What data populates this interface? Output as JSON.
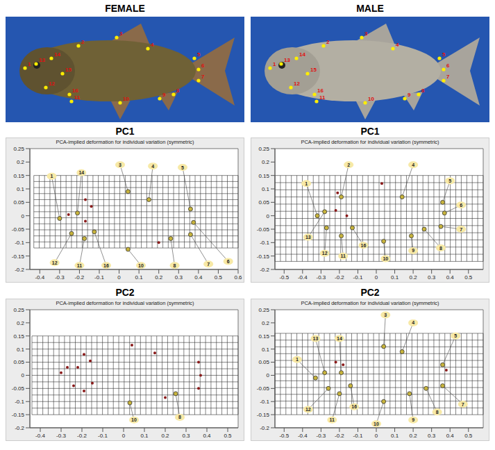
{
  "headings": [
    "FEMALE",
    "MALE"
  ],
  "photo_landmarks": [
    [
      "1",
      "2",
      "3",
      "4",
      "5",
      "6",
      "7",
      "8",
      "9",
      "10",
      "11",
      "12",
      "13",
      "14",
      "15",
      "16"
    ],
    [
      "1",
      "2",
      "3",
      "4",
      "5",
      "6",
      "7",
      "8",
      "9",
      "10",
      "11",
      "12",
      "13",
      "14",
      "15",
      "16"
    ]
  ],
  "chart_data": [
    {
      "type": "scatter",
      "title": "PC1",
      "subtitle": "PCA-implied deformation for individual variation (symmetric)",
      "xlim": [
        -0.45,
        0.6
      ],
      "ylim": [
        -0.2,
        0.25
      ],
      "xticks": [
        -0.4,
        -0.3,
        -0.2,
        -0.1,
        0,
        0.1,
        0.2,
        0.3,
        0.4,
        0.5,
        0.6
      ],
      "yticks": [
        -0.2,
        -0.15,
        -0.1,
        -0.05,
        0,
        0.05,
        0.1,
        0.15,
        0.2,
        0.25
      ],
      "grid": true,
      "deformation_grid": {
        "x": [
          -0.43,
          0.6
        ],
        "y": [
          -0.12,
          0.15
        ]
      },
      "color": "#c8b43c",
      "landmarks": [
        {
          "label": "1",
          "x": -0.3,
          "y": -0.01,
          "label_x": -0.34,
          "label_y": 0.147
        },
        {
          "label": "14",
          "x": -0.21,
          "y": 0.01,
          "label_x": -0.19,
          "label_y": 0.16
        },
        {
          "label": "3",
          "x": 0.045,
          "y": 0.09,
          "label_x": 0.005,
          "label_y": 0.19
        },
        {
          "label": "4",
          "x": 0.15,
          "y": 0.06,
          "label_x": 0.17,
          "label_y": 0.185
        },
        {
          "label": "5",
          "x": 0.36,
          "y": 0.025,
          "label_x": 0.32,
          "label_y": 0.18
        },
        {
          "label": "12",
          "x": -0.24,
          "y": -0.066,
          "label_x": -0.325,
          "label_y": -0.175
        },
        {
          "label": "11",
          "x": -0.175,
          "y": -0.085,
          "label_x": -0.2,
          "label_y": -0.185
        },
        {
          "label": "16",
          "x": -0.125,
          "y": -0.06,
          "label_x": -0.065,
          "label_y": -0.185
        },
        {
          "label": "10",
          "x": 0.045,
          "y": -0.125,
          "label_x": 0.11,
          "label_y": -0.185
        },
        {
          "label": "8",
          "x": 0.26,
          "y": -0.085,
          "label_x": 0.28,
          "label_y": -0.185
        },
        {
          "label": "7",
          "x": 0.36,
          "y": -0.07,
          "label_x": 0.45,
          "label_y": -0.18
        },
        {
          "label": "6",
          "x": 0.375,
          "y": -0.025,
          "label_x": 0.55,
          "label_y": -0.17
        }
      ],
      "dots": {
        "color": "#8b1a1a",
        "x": [
          -0.255,
          -0.17,
          -0.14,
          0.2,
          -0.17
        ],
        "y": [
          0.004,
          0.06,
          0.035,
          -0.1,
          -0.02
        ]
      }
    },
    {
      "type": "scatter",
      "title": "PC1",
      "subtitle": "PCA-implied deformation for individual variation (symmetric)",
      "xlim": [
        -0.55,
        0.58
      ],
      "ylim": [
        -0.2,
        0.25
      ],
      "xticks": [
        -0.5,
        -0.4,
        -0.3,
        -0.2,
        -0.1,
        0,
        0.1,
        0.2,
        0.3,
        0.4,
        0.5
      ],
      "yticks": [
        -0.2,
        -0.15,
        -0.1,
        -0.05,
        0,
        0.05,
        0.1,
        0.15,
        0.2,
        0.25
      ],
      "grid": true,
      "deformation_grid": {
        "x": [
          -0.55,
          0.58
        ],
        "y": [
          -0.17,
          0.15
        ]
      },
      "color": "#c8b43c",
      "landmarks": [
        {
          "label": "1",
          "x": -0.32,
          "y": 0.0,
          "label_x": -0.38,
          "label_y": 0.12
        },
        {
          "label": "2",
          "x": -0.19,
          "y": 0.07,
          "label_x": -0.15,
          "label_y": 0.19
        },
        {
          "label": "4",
          "x": 0.14,
          "y": 0.07,
          "label_x": 0.2,
          "label_y": 0.19
        },
        {
          "label": "5",
          "x": 0.36,
          "y": 0.05,
          "label_x": 0.4,
          "label_y": 0.13
        },
        {
          "label": "6",
          "x": 0.37,
          "y": 0.01,
          "label_x": 0.46,
          "label_y": 0.04
        },
        {
          "label": "7",
          "x": 0.35,
          "y": -0.04,
          "label_x": 0.46,
          "label_y": -0.05
        },
        {
          "label": "8",
          "x": 0.26,
          "y": -0.05,
          "label_x": 0.35,
          "label_y": -0.12
        },
        {
          "label": "9",
          "x": 0.19,
          "y": -0.075,
          "label_x": 0.2,
          "label_y": -0.13
        },
        {
          "label": "10",
          "x": 0.04,
          "y": -0.095,
          "label_x": 0.05,
          "label_y": -0.16
        },
        {
          "label": "16",
          "x": -0.13,
          "y": -0.045,
          "label_x": -0.07,
          "label_y": -0.11
        },
        {
          "label": "11",
          "x": -0.19,
          "y": -0.075,
          "label_x": -0.18,
          "label_y": -0.15
        },
        {
          "label": "12",
          "x": -0.27,
          "y": -0.045,
          "label_x": -0.28,
          "label_y": -0.14
        },
        {
          "label": "13",
          "x": -0.28,
          "y": 0.015,
          "label_x": -0.37,
          "label_y": -0.08
        }
      ],
      "dots": {
        "color": "#8b1a1a",
        "x": [
          -0.21,
          -0.22,
          0.03,
          -0.16
        ],
        "y": [
          0.085,
          0.02,
          0.12,
          0.0
        ]
      }
    },
    {
      "type": "scatter",
      "title": "PC2",
      "subtitle": "PCA-implied deformation for individual variation (symmetric)",
      "xlim": [
        -0.45,
        0.55
      ],
      "ylim": [
        -0.2,
        0.25
      ],
      "xticks": [
        -0.4,
        -0.3,
        -0.2,
        -0.1,
        0,
        0.1,
        0.2,
        0.3,
        0.4,
        0.5
      ],
      "yticks": [
        -0.2,
        -0.15,
        -0.1,
        -0.05,
        0,
        0.05,
        0.1,
        0.15,
        0.2,
        0.25
      ],
      "grid": true,
      "deformation_grid": {
        "x": [
          -0.44,
          0.55
        ],
        "y": [
          -0.15,
          0.15
        ]
      },
      "color": "#c8b43c",
      "landmarks": [
        {
          "label": "10",
          "x": 0.03,
          "y": -0.105,
          "label_x": 0.05,
          "label_y": -0.17
        },
        {
          "label": "8",
          "x": 0.25,
          "y": -0.07,
          "label_x": 0.27,
          "label_y": -0.16
        }
      ],
      "dots": {
        "color": "#8b1a1a",
        "x": [
          -0.3,
          -0.27,
          -0.22,
          -0.19,
          -0.16,
          -0.24,
          -0.19,
          -0.15,
          0.04,
          0.15,
          0.2,
          0.36,
          0.37,
          0.36
        ],
        "y": [
          0.01,
          0.03,
          0.03,
          0.08,
          0.055,
          -0.04,
          -0.06,
          -0.03,
          0.115,
          0.085,
          -0.085,
          0.05,
          0.0,
          -0.05
        ]
      }
    },
    {
      "type": "scatter",
      "title": "PC2",
      "subtitle": "PCA-implied deformation for individual variation (symmetric)",
      "xlim": [
        -0.55,
        0.58
      ],
      "ylim": [
        -0.2,
        0.25
      ],
      "xticks": [
        -0.5,
        -0.4,
        -0.3,
        -0.2,
        -0.1,
        0,
        0.1,
        0.2,
        0.3,
        0.4,
        0.5
      ],
      "yticks": [
        -0.2,
        -0.15,
        -0.1,
        -0.05,
        0,
        0.05,
        0.1,
        0.15,
        0.2,
        0.25
      ],
      "grid": true,
      "deformation_grid": {
        "x": [
          -0.55,
          0.58
        ],
        "y": [
          -0.15,
          0.16
        ]
      },
      "color": "#c8b43c",
      "landmarks": [
        {
          "label": "1",
          "x": -0.33,
          "y": -0.01,
          "label_x": -0.43,
          "label_y": 0.06
        },
        {
          "label": "13",
          "x": -0.28,
          "y": 0.01,
          "label_x": -0.33,
          "label_y": 0.14
        },
        {
          "label": "14",
          "x": -0.19,
          "y": 0.01,
          "label_x": -0.2,
          "label_y": 0.14
        },
        {
          "label": "3",
          "x": 0.04,
          "y": 0.11,
          "label_x": 0.05,
          "label_y": 0.23
        },
        {
          "label": "4",
          "x": 0.14,
          "y": 0.09,
          "label_x": 0.2,
          "label_y": 0.2
        },
        {
          "label": "5",
          "x": 0.36,
          "y": 0.04,
          "label_x": 0.43,
          "label_y": 0.15
        },
        {
          "label": "7",
          "x": 0.36,
          "y": -0.04,
          "label_x": 0.47,
          "label_y": -0.11
        },
        {
          "label": "8",
          "x": 0.27,
          "y": -0.05,
          "label_x": 0.33,
          "label_y": -0.14
        },
        {
          "label": "9",
          "x": 0.18,
          "y": -0.07,
          "label_x": 0.2,
          "label_y": -0.17
        },
        {
          "label": "10",
          "x": 0.04,
          "y": -0.1,
          "label_x": 0.0,
          "label_y": -0.185
        },
        {
          "label": "16",
          "x": -0.14,
          "y": -0.04,
          "label_x": -0.12,
          "label_y": -0.12
        },
        {
          "label": "11",
          "x": -0.2,
          "y": -0.07,
          "label_x": -0.24,
          "label_y": -0.17
        },
        {
          "label": "12",
          "x": -0.26,
          "y": -0.05,
          "label_x": -0.37,
          "label_y": -0.13
        }
      ],
      "dots": {
        "color": "#8b1a1a",
        "x": [
          -0.22,
          -0.18,
          0.38
        ],
        "y": [
          0.05,
          0.04,
          0.02
        ]
      }
    }
  ]
}
